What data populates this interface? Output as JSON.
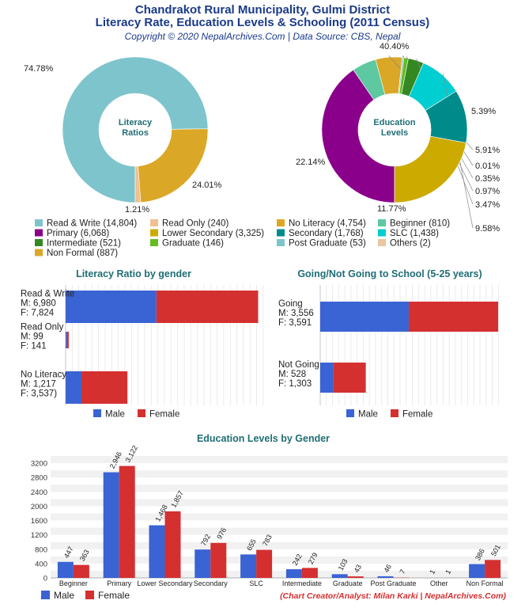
{
  "header": {
    "title_line1": "Chandrakot Rural Municipality, Gulmi District",
    "title_line2": "Literacy Rate, Education Levels & Schooling (2011 Census)",
    "subtitle": "Copyright © 2020 NepalArchives.Com | Data Source: CBS, Nepal"
  },
  "credit": "(Chart Creator/Analyst: Milan Karki | NepalArchives.Com)",
  "chart_data": [
    {
      "type": "pie",
      "center_label": [
        "Literacy",
        "Ratios"
      ],
      "slices": [
        {
          "label": "Read & Write",
          "value": 14804,
          "pct": "74.78%",
          "color": "#7ec4cc"
        },
        {
          "label": "No Literacy",
          "value": 4754,
          "pct": "24.01%",
          "color": "#dba726"
        },
        {
          "label": "Read Only",
          "value": 240,
          "pct": "1.21%",
          "color": "#f0c090"
        }
      ]
    },
    {
      "type": "pie",
      "center_label": [
        "Education",
        "Levels"
      ],
      "slices": [
        {
          "label": "Primary",
          "value": 6068,
          "pct": "40.40%",
          "color": "#8b008b"
        },
        {
          "label": "Beginner",
          "value": 810,
          "pct": "5.39%",
          "color": "#5ec8a0"
        },
        {
          "label": "Non Formal",
          "value": 887,
          "pct": "5.91%",
          "color": "#dba726"
        },
        {
          "label": "Others",
          "value": 2,
          "pct": "0.01%",
          "color": "#e8c8a0"
        },
        {
          "label": "Post Graduate",
          "value": 53,
          "pct": "0.35%",
          "color": "#7ec4cc"
        },
        {
          "label": "Graduate",
          "value": 146,
          "pct": "0.97%",
          "color": "#66bb22"
        },
        {
          "label": "Intermediate",
          "value": 521,
          "pct": "3.47%",
          "color": "#338822"
        },
        {
          "label": "SLC",
          "value": 1438,
          "pct": "9.58%",
          "color": "#00ced1"
        },
        {
          "label": "Secondary",
          "value": 1768,
          "pct": "11.77%",
          "color": "#008b8b"
        },
        {
          "label": "Lower Secondary",
          "value": 3325,
          "pct": "22.14%",
          "color": "#ccaa00"
        }
      ]
    },
    {
      "type": "bar",
      "title": "Literacy Ratio by gender",
      "orientation": "horizontal",
      "stacked": true,
      "categories": [
        {
          "name": "Read & Write",
          "m_label": "M: 6,980",
          "f_label": "F: 7,824"
        },
        {
          "name": "Read Only",
          "m_label": "M: 99",
          "f_label": "F: 141"
        },
        {
          "name": "No Literacy",
          "m_label": "M: 1,217",
          "f_label": "F: 3,537)"
        }
      ],
      "series": [
        {
          "name": "Male",
          "values": [
            6980,
            99,
            1217
          ],
          "color": "#3a63d4"
        },
        {
          "name": "Female",
          "values": [
            7824,
            141,
            3537
          ],
          "color": "#d43030"
        }
      ],
      "xlim": [
        0,
        15200
      ],
      "legend": "bottom"
    },
    {
      "type": "bar",
      "title": "Going/Not Going to School (5-25 years)",
      "orientation": "horizontal",
      "stacked": true,
      "categories": [
        {
          "name": "Going",
          "m_label": "M: 3,556",
          "f_label": "F: 3,591"
        },
        {
          "name": "Not Going",
          "m_label": "M: 528",
          "f_label": "F: 1,303"
        }
      ],
      "series": [
        {
          "name": "Male",
          "values": [
            3556,
            528
          ],
          "color": "#3a63d4"
        },
        {
          "name": "Female",
          "values": [
            3591,
            1303
          ],
          "color": "#d43030"
        }
      ],
      "xlim": [
        0,
        7400
      ],
      "legend": "bottom"
    },
    {
      "type": "bar",
      "title": "Education Levels by Gender",
      "categories": [
        "Beginner",
        "Primary",
        "Lower Secondary",
        "Secondary",
        "SLC",
        "Intermediate",
        "Graduate",
        "Post Graduate",
        "Other",
        "Non Formal"
      ],
      "series": [
        {
          "name": "Male",
          "values": [
            447,
            2946,
            1468,
            792,
            655,
            242,
            103,
            46,
            1,
            386
          ],
          "labels": [
            "447",
            "2,946",
            "1,468",
            "792",
            "655",
            "242",
            "103",
            "46",
            "1",
            "386"
          ],
          "color": "#3a63d4"
        },
        {
          "name": "Female",
          "values": [
            363,
            3122,
            1857,
            976,
            783,
            279,
            43,
            7,
            1,
            501
          ],
          "labels": [
            "363",
            "3,122",
            "1,857",
            "976",
            "783",
            "279",
            "43",
            "7",
            "1",
            "501"
          ],
          "color": "#d43030"
        }
      ],
      "yticks": [
        "0",
        "400",
        "800",
        "1200",
        "1600",
        "2000",
        "2400",
        "2800",
        "3200"
      ],
      "ylim": [
        0,
        3400
      ],
      "legend": "bottom-left"
    }
  ],
  "legend_rows": [
    [
      {
        "label": "Read & Write (14,804)",
        "color": "#7ec4cc"
      },
      {
        "label": "Read Only (240)",
        "color": "#f0c090"
      },
      {
        "label": "No Literacy (4,754)",
        "color": "#dba726"
      },
      {
        "label": "Beginner (810)",
        "color": "#5ec8a0"
      }
    ],
    [
      {
        "label": "Primary (6,068)",
        "color": "#8b008b"
      },
      {
        "label": "Lower Secondary (3,325)",
        "color": "#ccaa00"
      },
      {
        "label": "Secondary (1,768)",
        "color": "#008b8b"
      },
      {
        "label": "SLC (1,438)",
        "color": "#00ced1"
      }
    ],
    [
      {
        "label": "Intermediate (521)",
        "color": "#338822"
      },
      {
        "label": "Graduate (146)",
        "color": "#66bb22"
      },
      {
        "label": "Post Graduate (53)",
        "color": "#7ec4cc"
      },
      {
        "label": "Others (2)",
        "color": "#e8c8a0"
      }
    ],
    [
      {
        "label": "Non Formal (887)",
        "color": "#dba726"
      }
    ]
  ],
  "legend_male": "Male",
  "legend_female": "Female"
}
